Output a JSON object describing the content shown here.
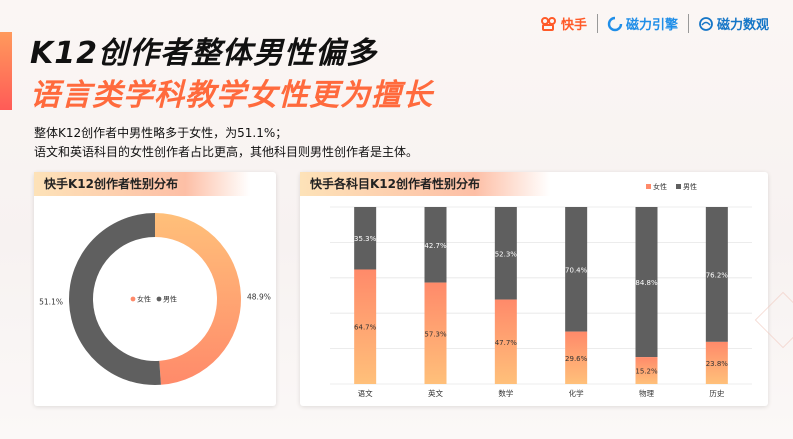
{
  "header": {
    "title_line1": "K12创作者整体男性偏多",
    "title_line2": "语言类学科教学女性更为擅长"
  },
  "logos": {
    "kuaishou": "快手",
    "cili_yinqing": "磁力引擎",
    "cili_shuguan": "磁力数观"
  },
  "description": {
    "line1": "整体K12创作者中男性略多于女性，为51.1%；",
    "line2": "语文和英语科目的女性创作者占比更高，其他科目则男性创作者是主体。"
  },
  "colors": {
    "female_top": "#ff8a6a",
    "female_bottom": "#ffc07a",
    "male": "#5f5f5f"
  },
  "chart_data": [
    {
      "type": "pie",
      "title": "快手K12创作者性别分布",
      "donut": true,
      "legend": [
        "女性",
        "男性"
      ],
      "legend_position": "center",
      "slices": [
        {
          "name": "女性",
          "value": 48.9,
          "label": "48.9%"
        },
        {
          "name": "男性",
          "value": 51.1,
          "label": "51.1%"
        }
      ]
    },
    {
      "type": "bar",
      "stacked": true,
      "title": "快手各科目K12创作者性别分布",
      "legend_position": "top-right",
      "categories": [
        "语文",
        "英文",
        "数学",
        "化学",
        "物理",
        "历史"
      ],
      "series": [
        {
          "name": "女性",
          "values": [
            64.7,
            57.3,
            47.7,
            29.6,
            15.2,
            23.8
          ],
          "labels": [
            "64.7%",
            "57.3%",
            "47.7%",
            "29.6%",
            "15.2%",
            "23.8%"
          ]
        },
        {
          "name": "男性",
          "values": [
            35.3,
            42.7,
            52.3,
            70.4,
            84.8,
            76.2
          ],
          "labels": [
            "35.3%",
            "42.7%",
            "52.3%",
            "70.4%",
            "84.8%",
            "76.2%"
          ]
        }
      ],
      "ylim": [
        0,
        100
      ],
      "grid": true
    }
  ]
}
